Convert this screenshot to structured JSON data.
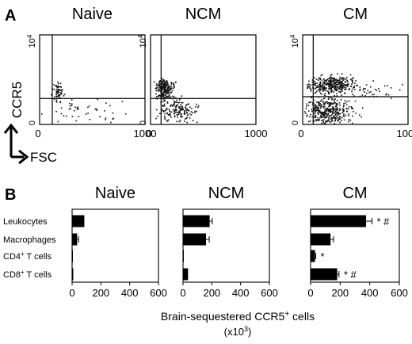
{
  "panel_a": {
    "label": "A",
    "y_axis_label": "CCR5",
    "x_axis_label": "FSC",
    "y_ticks": [
      "10",
      "0"
    ],
    "y_tick_exponent": "4",
    "x_ticks": [
      "0",
      "1000"
    ]
  },
  "panel_b": {
    "label": "B",
    "x_axis_title": "Brain-sequestered CCR5",
    "x_axis_title_superscript": "+",
    "x_axis_title_suffix": " cells",
    "x_axis_units": "(x10",
    "x_axis_units_exponent": "3",
    "x_axis_units_close": ")",
    "row_labels": [
      {
        "main": "Leukocytes",
        "sup": "",
        "rest": ""
      },
      {
        "main": "Macrophages",
        "sup": "",
        "rest": ""
      },
      {
        "main": "CD4",
        "sup": "+",
        "rest": " T cells"
      },
      {
        "main": "CD8",
        "sup": "+",
        "rest": " T cells"
      }
    ],
    "x_ticks": [
      "0",
      "200",
      "400",
      "600"
    ]
  },
  "chart_data": [
    {
      "type": "scatter",
      "title": "Naive",
      "xlabel": "FSC",
      "ylabel": "CCR5",
      "xlim": [
        0,
        1000
      ],
      "ylim": [
        0,
        10000
      ],
      "y_scale": "log",
      "gate_lines": true,
      "population_description": "few events; small cluster of CCR5-high cells near FSC 300"
    },
    {
      "type": "scatter",
      "title": "NCM",
      "xlabel": "FSC",
      "ylabel": "CCR5",
      "xlim": [
        0,
        1000
      ],
      "ylim": [
        0,
        10000
      ],
      "y_scale": "log",
      "gate_lines": true,
      "population_description": "dense CCR5-high cluster near FSC 300 plus CCR5-low events"
    },
    {
      "type": "scatter",
      "title": "CM",
      "xlabel": "FSC",
      "ylabel": "CCR5",
      "xlim": [
        0,
        1000
      ],
      "ylim": [
        0,
        10000
      ],
      "y_scale": "log",
      "gate_lines": true,
      "population_description": "large CCR5-high and CCR5-low populations"
    },
    {
      "type": "bar",
      "orientation": "horizontal",
      "title": "Naive",
      "categories": [
        "Leukocytes",
        "Macrophages",
        "CD4+ T cells",
        "CD8+ T cells"
      ],
      "values": [
        85,
        35,
        2,
        8
      ],
      "errors": [
        0,
        10,
        0,
        0
      ],
      "annotations": [
        "",
        "",
        "",
        ""
      ],
      "xlim": [
        0,
        600
      ]
    },
    {
      "type": "bar",
      "orientation": "horizontal",
      "title": "NCM",
      "categories": [
        "Leukocytes",
        "Macrophages",
        "CD4+ T cells",
        "CD8+ T cells"
      ],
      "values": [
        185,
        160,
        5,
        35
      ],
      "errors": [
        18,
        22,
        0,
        0
      ],
      "annotations": [
        "",
        "",
        "",
        ""
      ],
      "xlim": [
        0,
        600
      ]
    },
    {
      "type": "bar",
      "orientation": "horizontal",
      "title": "CM",
      "categories": [
        "Leukocytes",
        "Macrophages",
        "CD4+ T cells",
        "CD8+ T cells"
      ],
      "values": [
        375,
        135,
        30,
        180
      ],
      "errors": [
        40,
        20,
        5,
        12
      ],
      "annotations": [
        "* #",
        "",
        "*",
        "* #"
      ],
      "xlim": [
        0,
        600
      ]
    }
  ]
}
